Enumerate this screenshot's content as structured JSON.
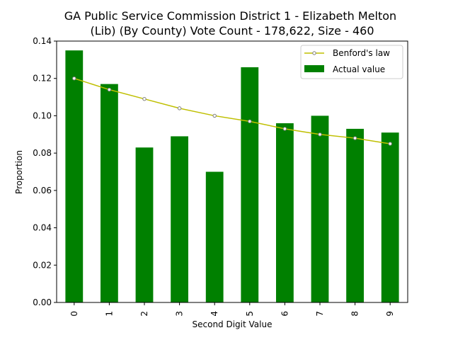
{
  "chart_data": {
    "type": "bar",
    "title": "GA Public Service Commission District 1 - Elizabeth Melton\n(Lib) (By County) Vote Count - 178,622, Size - 460",
    "xlabel": "Second Digit Value",
    "ylabel": "Proportion",
    "categories": [
      "0",
      "1",
      "2",
      "3",
      "4",
      "5",
      "6",
      "7",
      "8",
      "9"
    ],
    "ylim": [
      0,
      0.14
    ],
    "yticks": [
      "0.00",
      "0.02",
      "0.04",
      "0.06",
      "0.08",
      "0.10",
      "0.12",
      "0.14"
    ],
    "grid": false,
    "legend_position": "top-right",
    "series": [
      {
        "name": "Actual value",
        "kind": "bar",
        "color": "#008000",
        "values": [
          0.135,
          0.117,
          0.083,
          0.089,
          0.07,
          0.126,
          0.096,
          0.1,
          0.093,
          0.091
        ]
      },
      {
        "name": "Benford's law",
        "kind": "line",
        "color": "#bfbf00",
        "marker_color": "#7f7f7f",
        "values": [
          0.12,
          0.114,
          0.109,
          0.104,
          0.1,
          0.097,
          0.093,
          0.09,
          0.088,
          0.085
        ]
      }
    ]
  }
}
